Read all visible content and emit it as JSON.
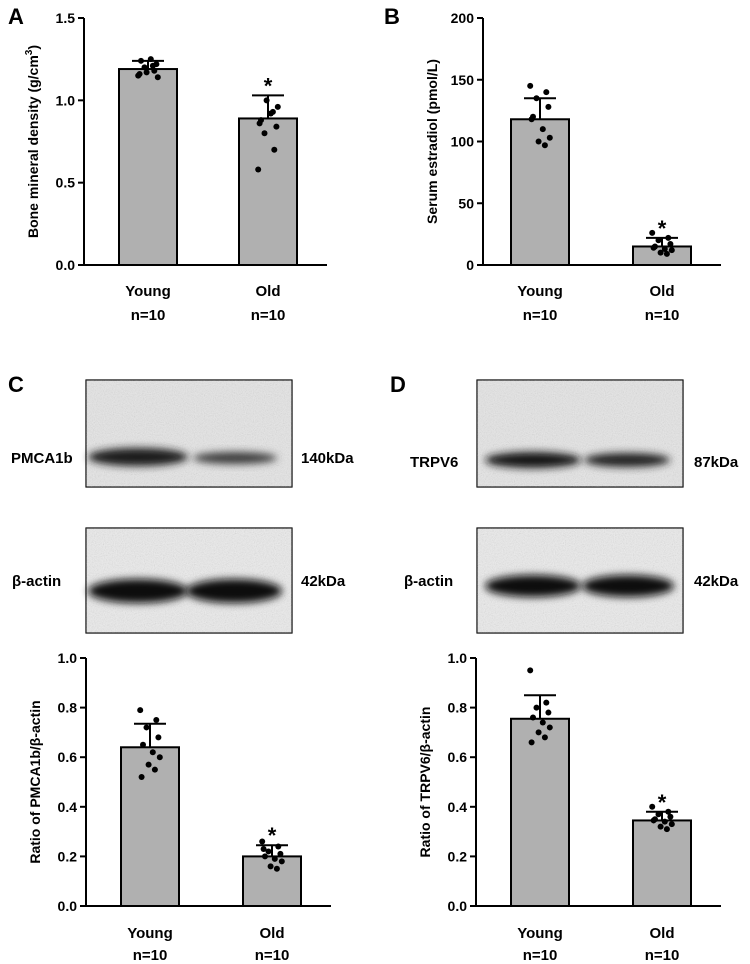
{
  "panels": {
    "A": {
      "letter": "A"
    },
    "B": {
      "letter": "B"
    },
    "C": {
      "letter": "C"
    },
    "D": {
      "letter": "D"
    }
  },
  "blots": {
    "C": {
      "target": {
        "label": "PMCA1b",
        "size": "140kDa"
      },
      "control": {
        "label": "β-actin",
        "size": "42kDa"
      }
    },
    "D": {
      "target": {
        "label": "TRPV6",
        "size": "87kDa"
      },
      "control": {
        "label": "β-actin",
        "size": "42kDa"
      }
    }
  },
  "chart_data": [
    {
      "id": "A",
      "type": "bar",
      "categories": [
        "Young",
        "Old"
      ],
      "category_n": [
        "n=10",
        "n=10"
      ],
      "values": [
        1.19,
        0.89
      ],
      "error": [
        0.05,
        0.14
      ],
      "points": [
        [
          1.15,
          1.18,
          1.2,
          1.22,
          1.24,
          1.25,
          1.14,
          1.17,
          1.21,
          1.16
        ],
        [
          0.58,
          0.7,
          0.8,
          0.84,
          0.88,
          0.92,
          0.96,
          1.0,
          0.93,
          0.86
        ]
      ],
      "significance": [
        "",
        "*"
      ],
      "title": "",
      "xlabel": "",
      "ylabel": "Bone mineral density (g/cm",
      "ylabel_sup": "3",
      "ylabel_end": ")",
      "ylim": [
        0,
        1.5
      ],
      "yticks": [
        0,
        0.5,
        1,
        1.5
      ],
      "ytick_labels": [
        "0.0",
        "0.5",
        "1.0",
        "1.5"
      ],
      "grid": false,
      "bar_color": "#b0b0b0"
    },
    {
      "id": "B",
      "type": "bar",
      "categories": [
        "Young",
        "Old"
      ],
      "category_n": [
        "n=10",
        "n=10"
      ],
      "values": [
        118,
        15
      ],
      "error": [
        17,
        7
      ],
      "points": [
        [
          145,
          140,
          135,
          128,
          120,
          110,
          103,
          100,
          97,
          118
        ],
        [
          26,
          22,
          20,
          17,
          15,
          13,
          12,
          10,
          9,
          14
        ]
      ],
      "significance": [
        "",
        "*"
      ],
      "title": "",
      "xlabel": "",
      "ylabel": "Serum estradiol (pmol/L)",
      "ylabel_sup": "",
      "ylabel_end": "",
      "ylim": [
        0,
        200
      ],
      "yticks": [
        0,
        50,
        100,
        150,
        200
      ],
      "ytick_labels": [
        "0",
        "50",
        "100",
        "150",
        "200"
      ],
      "grid": false,
      "bar_color": "#b0b0b0"
    },
    {
      "id": "C",
      "type": "bar",
      "categories": [
        "Young",
        "Old"
      ],
      "category_n": [
        "n=10",
        "n=10"
      ],
      "values": [
        0.64,
        0.2
      ],
      "error": [
        0.095,
        0.045
      ],
      "points": [
        [
          0.79,
          0.75,
          0.72,
          0.68,
          0.65,
          0.62,
          0.6,
          0.57,
          0.55,
          0.52
        ],
        [
          0.26,
          0.24,
          0.22,
          0.21,
          0.2,
          0.19,
          0.18,
          0.16,
          0.15,
          0.23
        ]
      ],
      "significance": [
        "",
        "*"
      ],
      "title": "",
      "xlabel": "",
      "ylabel": "Ratio of PMCA1b/β-actin",
      "ylabel_sup": "",
      "ylabel_end": "",
      "ylim": [
        0,
        1
      ],
      "yticks": [
        0,
        0.2,
        0.4,
        0.6,
        0.8,
        1
      ],
      "ytick_labels": [
        "0.0",
        "0.2",
        "0.4",
        "0.6",
        "0.8",
        "1.0"
      ],
      "grid": false,
      "bar_color": "#b0b0b0"
    },
    {
      "id": "D",
      "type": "bar",
      "categories": [
        "Young",
        "Old"
      ],
      "category_n": [
        "n=10",
        "n=10"
      ],
      "values": [
        0.755,
        0.345
      ],
      "error": [
        0.095,
        0.035
      ],
      "points": [
        [
          0.95,
          0.82,
          0.8,
          0.78,
          0.76,
          0.74,
          0.72,
          0.7,
          0.68,
          0.66
        ],
        [
          0.4,
          0.38,
          0.37,
          0.36,
          0.35,
          0.34,
          0.33,
          0.32,
          0.31,
          0.345
        ]
      ],
      "significance": [
        "",
        "*"
      ],
      "title": "",
      "xlabel": "",
      "ylabel": "Ratio of TRPV6/β-actin",
      "ylabel_sup": "",
      "ylabel_end": "",
      "ylim": [
        0,
        1
      ],
      "yticks": [
        0,
        0.2,
        0.4,
        0.6,
        0.8,
        1
      ],
      "ytick_labels": [
        "0.0",
        "0.2",
        "0.4",
        "0.6",
        "0.8",
        "1.0"
      ],
      "grid": false,
      "bar_color": "#b0b0b0"
    }
  ]
}
